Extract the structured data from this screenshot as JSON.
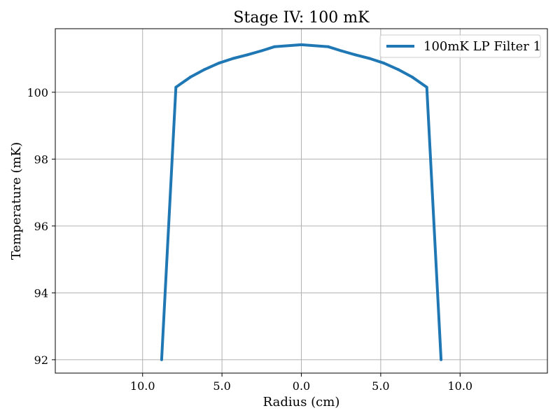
{
  "chart_data": {
    "type": "line",
    "title": "Stage IV: 100 mK",
    "xlabel": "Radius (cm)",
    "ylabel": "Temperature (mK)",
    "xlim": [
      -15.5,
      15.5
    ],
    "ylim": [
      91.6,
      101.9
    ],
    "x_ticks": [
      {
        "value": -10,
        "label": "10.0"
      },
      {
        "value": -5,
        "label": "5.0"
      },
      {
        "value": 0,
        "label": "0.0"
      },
      {
        "value": 5,
        "label": "5.0"
      },
      {
        "value": 10,
        "label": "10.0"
      }
    ],
    "y_ticks": [
      {
        "value": 92,
        "label": "92"
      },
      {
        "value": 94,
        "label": "94"
      },
      {
        "value": 96,
        "label": "96"
      },
      {
        "value": 98,
        "label": "98"
      },
      {
        "value": 100,
        "label": "100"
      }
    ],
    "grid": true,
    "legend_position": "top-right",
    "series": [
      {
        "name": "100mK LP Filter 1",
        "color": "#1f77b4",
        "points": [
          {
            "x": -8.8,
            "y": 92.0
          },
          {
            "x": -7.9,
            "y": 100.15
          },
          {
            "x": -7.0,
            "y": 100.45
          },
          {
            "x": -6.1,
            "y": 100.68
          },
          {
            "x": -5.2,
            "y": 100.87
          },
          {
            "x": -4.3,
            "y": 101.01
          },
          {
            "x": -3.4,
            "y": 101.12
          },
          {
            "x": -2.5,
            "y": 101.24
          },
          {
            "x": -1.7,
            "y": 101.36
          },
          {
            "x": 0.0,
            "y": 101.42
          },
          {
            "x": 1.7,
            "y": 101.36
          },
          {
            "x": 2.5,
            "y": 101.24
          },
          {
            "x": 3.4,
            "y": 101.12
          },
          {
            "x": 4.3,
            "y": 101.01
          },
          {
            "x": 5.2,
            "y": 100.87
          },
          {
            "x": 6.1,
            "y": 100.68
          },
          {
            "x": 7.0,
            "y": 100.45
          },
          {
            "x": 7.9,
            "y": 100.15
          },
          {
            "x": 8.8,
            "y": 92.0
          }
        ]
      }
    ]
  }
}
